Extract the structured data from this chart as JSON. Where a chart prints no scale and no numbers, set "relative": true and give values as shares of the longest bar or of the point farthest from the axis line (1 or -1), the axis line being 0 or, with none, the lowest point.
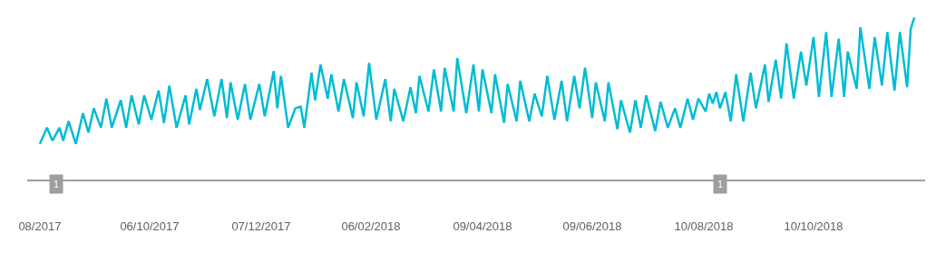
{
  "chart_data": {
    "type": "line",
    "relative": true,
    "marker": "none",
    "line_style": "solid",
    "xlim": [
      "2017-07-30",
      "2018-12-11"
    ],
    "xticks": [
      {
        "value": "2017-08-06",
        "label": "08/2017"
      },
      {
        "value": "2017-10-06",
        "label": "06/10/2017"
      },
      {
        "value": "2017-12-07",
        "label": "07/12/2017"
      },
      {
        "value": "2018-02-06",
        "label": "06/02/2018"
      },
      {
        "value": "2018-04-09",
        "label": "09/04/2018"
      },
      {
        "value": "2018-06-09",
        "label": "09/06/2018"
      },
      {
        "value": "2018-08-10",
        "label": "10/08/2018"
      },
      {
        "value": "2018-10-10",
        "label": "10/10/2018"
      }
    ],
    "annotations": [
      {
        "text": "1",
        "x": "2017-08-15"
      },
      {
        "text": "1",
        "x": "2018-08-19"
      }
    ],
    "series": [
      {
        "color": "#00bcd4",
        "x": [
          "2017-08-06",
          "2017-08-10",
          "2017-08-13",
          "2017-08-17",
          "2017-08-19",
          "2017-08-22",
          "2017-08-26",
          "2017-08-30",
          "2017-09-02",
          "2017-09-05",
          "2017-09-09",
          "2017-09-12",
          "2017-09-15",
          "2017-09-20",
          "2017-09-23",
          "2017-09-26",
          "2017-09-30",
          "2017-10-03",
          "2017-10-07",
          "2017-10-11",
          "2017-10-14",
          "2017-10-17",
          "2017-10-21",
          "2017-10-26",
          "2017-10-28",
          "2017-11-01",
          "2017-11-03",
          "2017-11-07",
          "2017-11-11",
          "2017-11-15",
          "2017-11-18",
          "2017-11-20",
          "2017-11-24",
          "2017-11-28",
          "2017-12-01",
          "2017-12-06",
          "2017-12-09",
          "2017-12-14",
          "2017-12-16",
          "2017-12-18",
          "2017-12-22",
          "2017-12-26",
          "2017-12-29",
          "2017-12-31",
          "2018-01-04",
          "2018-01-06",
          "2018-01-09",
          "2018-01-13",
          "2018-01-15",
          "2018-01-19",
          "2018-01-22",
          "2018-01-27",
          "2018-01-29",
          "2018-02-02",
          "2018-02-05",
          "2018-02-09",
          "2018-02-14",
          "2018-02-17",
          "2018-02-19",
          "2018-02-24",
          "2018-02-28",
          "2018-03-03",
          "2018-03-05",
          "2018-03-10",
          "2018-03-13",
          "2018-03-17",
          "2018-03-19",
          "2018-03-24",
          "2018-03-26",
          "2018-03-31",
          "2018-04-04",
          "2018-04-07",
          "2018-04-09",
          "2018-04-14",
          "2018-04-16",
          "2018-04-21",
          "2018-04-23",
          "2018-04-28",
          "2018-04-30",
          "2018-05-05",
          "2018-05-08",
          "2018-05-12",
          "2018-05-15",
          "2018-05-19",
          "2018-05-23",
          "2018-05-26",
          "2018-05-30",
          "2018-06-02",
          "2018-06-05",
          "2018-06-09",
          "2018-06-11",
          "2018-06-16",
          "2018-06-18",
          "2018-06-23",
          "2018-06-25",
          "2018-06-30",
          "2018-07-03",
          "2018-07-06",
          "2018-07-09",
          "2018-07-14",
          "2018-07-17",
          "2018-07-21",
          "2018-07-25",
          "2018-07-28",
          "2018-08-01",
          "2018-08-04",
          "2018-08-07",
          "2018-08-11",
          "2018-08-13",
          "2018-08-15",
          "2018-08-17",
          "2018-08-19",
          "2018-08-22",
          "2018-08-25",
          "2018-08-28",
          "2018-09-01",
          "2018-09-05",
          "2018-09-08",
          "2018-09-13",
          "2018-09-15",
          "2018-09-19",
          "2018-09-22",
          "2018-09-25",
          "2018-09-29",
          "2018-10-03",
          "2018-10-06",
          "2018-10-10",
          "2018-10-13",
          "2018-10-17",
          "2018-10-20",
          "2018-10-24",
          "2018-10-27",
          "2018-10-29",
          "2018-11-01",
          "2018-11-03",
          "2018-11-05",
          "2018-11-10",
          "2018-11-13",
          "2018-11-17",
          "2018-11-20",
          "2018-11-24",
          "2018-11-27",
          "2018-12-01",
          "2018-12-03",
          "2018-12-05"
        ],
        "values": [
          0.22,
          0.32,
          0.24,
          0.32,
          0.24,
          0.36,
          0.22,
          0.41,
          0.29,
          0.44,
          0.32,
          0.5,
          0.32,
          0.49,
          0.32,
          0.52,
          0.34,
          0.52,
          0.37,
          0.55,
          0.35,
          0.58,
          0.32,
          0.52,
          0.34,
          0.56,
          0.43,
          0.62,
          0.39,
          0.62,
          0.38,
          0.6,
          0.37,
          0.59,
          0.37,
          0.59,
          0.39,
          0.67,
          0.44,
          0.64,
          0.32,
          0.44,
          0.45,
          0.32,
          0.66,
          0.49,
          0.71,
          0.5,
          0.65,
          0.42,
          0.62,
          0.38,
          0.6,
          0.39,
          0.72,
          0.37,
          0.62,
          0.36,
          0.56,
          0.36,
          0.57,
          0.41,
          0.64,
          0.42,
          0.68,
          0.42,
          0.69,
          0.42,
          0.75,
          0.41,
          0.71,
          0.42,
          0.68,
          0.41,
          0.65,
          0.35,
          0.59,
          0.36,
          0.61,
          0.36,
          0.53,
          0.39,
          0.64,
          0.37,
          0.61,
          0.36,
          0.64,
          0.44,
          0.69,
          0.38,
          0.6,
          0.36,
          0.6,
          0.31,
          0.49,
          0.29,
          0.49,
          0.32,
          0.52,
          0.3,
          0.48,
          0.32,
          0.44,
          0.32,
          0.5,
          0.37,
          0.5,
          0.42,
          0.53,
          0.47,
          0.54,
          0.44,
          0.54,
          0.36,
          0.65,
          0.36,
          0.66,
          0.44,
          0.71,
          0.48,
          0.74,
          0.5,
          0.84,
          0.5,
          0.79,
          0.58,
          0.88,
          0.51,
          0.91,
          0.51,
          0.87,
          0.51,
          0.79,
          0.65,
          0.56,
          0.94,
          0.56,
          0.88,
          0.58,
          0.91,
          0.55,
          0.91,
          0.57,
          0.93,
          1.0
        ]
      }
    ]
  }
}
